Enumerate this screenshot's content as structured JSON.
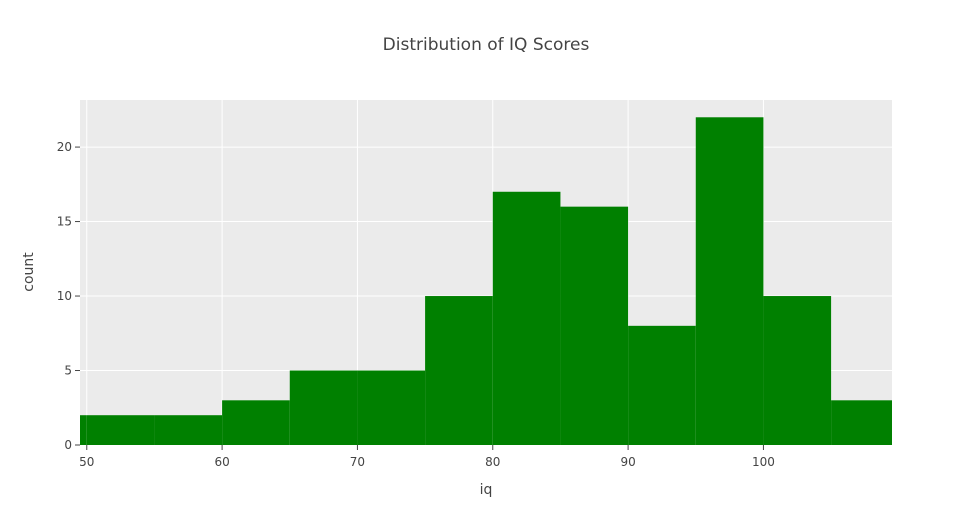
{
  "chart_data": {
    "type": "bar",
    "title": "Distribution of IQ Scores",
    "xlabel": "iq",
    "ylabel": "count",
    "bin_width": 5,
    "bins": [
      {
        "start": 45,
        "end": 50,
        "count": 2
      },
      {
        "start": 50,
        "end": 55,
        "count": 2
      },
      {
        "start": 55,
        "end": 60,
        "count": 2
      },
      {
        "start": 60,
        "end": 65,
        "count": 3
      },
      {
        "start": 65,
        "end": 70,
        "count": 5
      },
      {
        "start": 70,
        "end": 75,
        "count": 5
      },
      {
        "start": 75,
        "end": 80,
        "count": 10
      },
      {
        "start": 80,
        "end": 85,
        "count": 17
      },
      {
        "start": 85,
        "end": 90,
        "count": 16
      },
      {
        "start": 90,
        "end": 95,
        "count": 8
      },
      {
        "start": 95,
        "end": 100,
        "count": 22
      },
      {
        "start": 100,
        "end": 105,
        "count": 10
      },
      {
        "start": 105,
        "end": 110,
        "count": 3
      }
    ],
    "xlim": [
      49.5,
      109.5
    ],
    "ylim": [
      0,
      23.16
    ],
    "x_ticks": [
      50,
      60,
      70,
      80,
      90,
      100
    ],
    "y_ticks": [
      0,
      5,
      10,
      15,
      20
    ],
    "bar_color": "#008000",
    "plot_background": "#ebebeb",
    "grid": true
  }
}
